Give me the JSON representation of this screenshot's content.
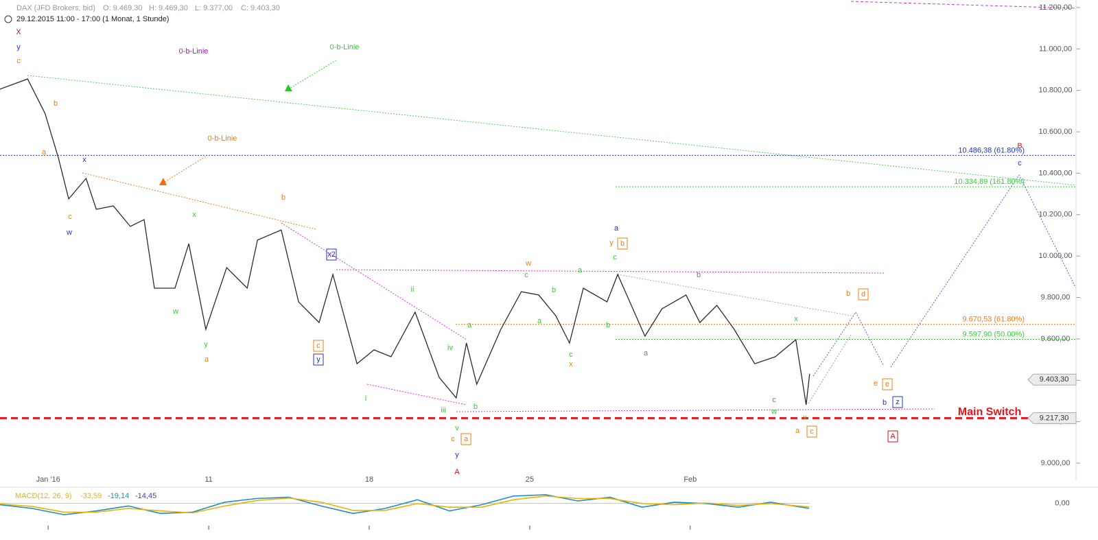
{
  "chart_data": {
    "type": "line",
    "color": "#2a2a2a",
    "header": "DAX (JFD Brokers, bid)",
    "ohlc": [
      "O: 9.469,30",
      "H: 9.469,30",
      "L: 9.377,00",
      "C: 9.403,30"
    ],
    "period": "29.12.2015 11:00 - 17:00 (1 Monat, 1 Stunde)",
    "x": [
      -1.5,
      -0.64,
      -0.1,
      0.32,
      0.64,
      1.18,
      1.5,
      2.03,
      2.56,
      2.99,
      3.31,
      3.95,
      4.38,
      4.91,
      5.56,
      6.2,
      6.52,
      7.26,
      7.8,
      8.44,
      8.87,
      9.62,
      10.15,
      10.68,
      11.43,
      12.18,
      12.71,
      13.03,
      13.35,
      14.1,
      14.74,
      15.28,
      15.81,
      16.24,
      16.67,
      17.41,
      17.74,
      18.59,
      19.12,
      19.87,
      20.3,
      20.83,
      21.37,
      22.01,
      22.65,
      23.29,
      23.61,
      23.72
    ],
    "values": [
      10806,
      10855,
      10690,
      10474,
      10276,
      10375,
      10226,
      10242,
      10143,
      10176,
      9845,
      9845,
      10060,
      9646,
      9944,
      9845,
      10077,
      10126,
      9779,
      9679,
      9911,
      9480,
      9547,
      9514,
      9729,
      9414,
      9315,
      9580,
      9381,
      9646,
      9828,
      9812,
      9712,
      9580,
      9845,
      9779,
      9911,
      9613,
      9745,
      9812,
      9679,
      9762,
      9646,
      9480,
      9514,
      9596,
      9282,
      9431
    ],
    "xlim": [
      -1.5,
      30.5
    ],
    "ylim": [
      8920,
      11220
    ],
    "xticks": [
      {
        "value": 0,
        "label": "Jan '16"
      },
      {
        "value": 5,
        "label": "11"
      },
      {
        "value": 10,
        "label": "18"
      },
      {
        "value": 15,
        "label": "25"
      },
      {
        "value": 20,
        "label": "Feb"
      }
    ],
    "yticks": [
      {
        "value": 9000,
        "label": "9.000,00"
      },
      {
        "value": 9200,
        "label": "9.200,00"
      },
      {
        "value": 9400,
        "label": "9.400,00"
      },
      {
        "value": 9600,
        "label": "9.600,00"
      },
      {
        "value": 9800,
        "label": "9.800,00"
      },
      {
        "value": 10000,
        "label": "10.000,00"
      },
      {
        "value": 10200,
        "label": "10.200,00"
      },
      {
        "value": 10400,
        "label": "10.400,00"
      },
      {
        "value": 10600,
        "label": "10.600,00"
      },
      {
        "value": 10800,
        "label": "10.800,00"
      },
      {
        "value": 11000,
        "label": "11.000,00"
      },
      {
        "value": 11200,
        "label": "11.200,00"
      }
    ],
    "levels": [
      {
        "value": 10486.38,
        "label": "10.486,38 (61.80%)",
        "color": "#2233cc"
      },
      {
        "value": 10334.89,
        "label": "10.334,89 (161.80%)",
        "color": "#33cc33"
      },
      {
        "value": 9670.53,
        "label": "9.670,53 (61.80%)",
        "color": "#f07c10"
      },
      {
        "value": 9597.9,
        "label": "9.597,90 (50.00%)",
        "color": "#33cc33"
      }
    ],
    "price_tags": [
      {
        "value": 9403.3,
        "label": "9.403,30"
      },
      {
        "value": 9217.3,
        "label": "9.217,30"
      }
    ],
    "main_switch_color": "#e8141a",
    "annotations": [
      "X",
      "y",
      "c",
      "b",
      "a",
      "x",
      "c",
      "w",
      "x",
      "w",
      "y",
      "a",
      "b",
      "c",
      "y",
      "x2",
      "ii",
      "i",
      "iv",
      "iii",
      "v",
      "c",
      "a",
      "y",
      "A",
      "b",
      "a",
      "w",
      "c",
      "b",
      "a",
      "a",
      "b",
      "c",
      "x",
      "a",
      "y",
      "b",
      "c",
      "a",
      "b",
      "x",
      "c",
      "w",
      "x",
      "a",
      "c",
      "b",
      "d",
      "e",
      "e",
      "b",
      "z",
      "A",
      "B",
      "c",
      "0-b-Linie",
      "0-b-Linie",
      "0-b-Linie",
      "Main Switch"
    ],
    "macd": {
      "label": "MACD(12, 26, 9)",
      "readouts": [
        "-33,59",
        "-19,14",
        "-14,45"
      ],
      "x": [
        -1.5,
        -0.5,
        0.5,
        1.5,
        2.5,
        3.5,
        4.5,
        5.5,
        6.5,
        7.5,
        8.5,
        9.5,
        10.5,
        11.5,
        12.5,
        13.5,
        14.5,
        15.5,
        16.5,
        17.5,
        18.5,
        19.5,
        20.5,
        21.5,
        22.5,
        23.7
      ],
      "macd": [
        -5,
        -20,
        -45,
        -30,
        -10,
        -40,
        -35,
        5,
        20,
        25,
        -10,
        -40,
        -20,
        15,
        -30,
        -5,
        30,
        35,
        10,
        25,
        -15,
        5,
        0,
        -15,
        5,
        -20
      ],
      "signal": [
        -2,
        -12,
        -35,
        -35,
        -20,
        -30,
        -38,
        -10,
        12,
        22,
        5,
        -28,
        -28,
        0,
        -15,
        -15,
        15,
        30,
        20,
        20,
        0,
        -5,
        2,
        -8,
        0,
        -14
      ],
      "ylim": [
        -100,
        60
      ],
      "yticks": [
        {
          "value": 0,
          "label": "0,00"
        }
      ]
    }
  }
}
